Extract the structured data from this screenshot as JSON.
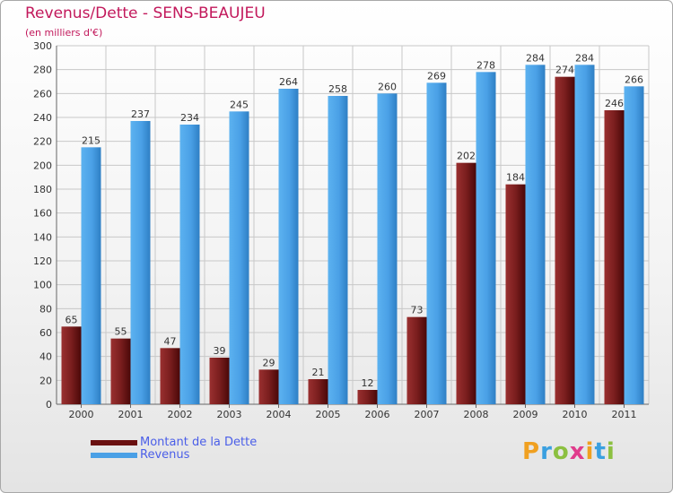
{
  "header": {
    "title": "Revenus/Dette - SENS-BEAUJEU",
    "subtitle": "(en milliers d'€)"
  },
  "legend": {
    "items": [
      {
        "label": "Montant de la Dette",
        "color": "#7a1e1e"
      },
      {
        "label": "Revenus",
        "color": "#4aa0e6"
      }
    ]
  },
  "logo": {
    "text": "Proxiti",
    "letters": [
      {
        "char": "P",
        "color": "#f0a020"
      },
      {
        "char": "r",
        "color": "#3aa0e0"
      },
      {
        "char": "o",
        "color": "#8cc040"
      },
      {
        "char": "x",
        "color": "#e03c8c"
      },
      {
        "char": "i",
        "color": "#f0a020"
      },
      {
        "char": "t",
        "color": "#3aa0e0"
      },
      {
        "char": "i",
        "color": "#8cc040"
      }
    ]
  },
  "chart_data": {
    "type": "bar",
    "title": "Revenus/Dette - SENS-BEAUJEU",
    "subtitle": "(en milliers d'€)",
    "categories": [
      "2000",
      "2001",
      "2002",
      "2003",
      "2004",
      "2005",
      "2006",
      "2007",
      "2008",
      "2009",
      "2010",
      "2011"
    ],
    "series": [
      {
        "name": "Montant de la Dette",
        "color": "#7a1e1e",
        "values": [
          65,
          55,
          47,
          39,
          29,
          21,
          12,
          73,
          202,
          184,
          274,
          246
        ]
      },
      {
        "name": "Revenus",
        "color": "#4aa0e6",
        "values": [
          215,
          237,
          234,
          245,
          264,
          258,
          260,
          269,
          278,
          284,
          284,
          266
        ]
      }
    ],
    "ylim": [
      0,
      300
    ],
    "ytick_step": 20,
    "grid": true,
    "legend_position": "bottom-left"
  }
}
